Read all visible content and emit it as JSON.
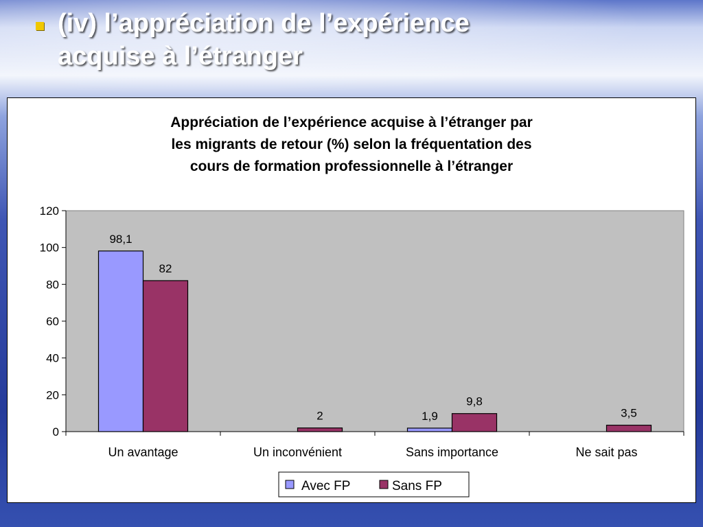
{
  "slide": {
    "title_line1": "(iv) l’appréciation de l’expérience",
    "title_line2": "acquise à l’étranger",
    "bullet_color": "#f0c800"
  },
  "chart_data": {
    "type": "bar",
    "title_lines": [
      "Appréciation de l’expérience acquise à l’étranger par",
      "les migrants de retour (%) selon la fréquentation des",
      "cours de formation professionnelle à l’étranger"
    ],
    "categories": [
      "Un avantage",
      "Un inconvénient",
      "Sans importance",
      "Ne sait pas"
    ],
    "series": [
      {
        "name": "Avec FP",
        "color": "#9999ff",
        "values": [
          98.1,
          0,
          1.9,
          0
        ],
        "labels": [
          "98,1",
          "",
          "1,9",
          ""
        ]
      },
      {
        "name": "Sans FP",
        "color": "#993366",
        "values": [
          82,
          2,
          9.8,
          3.5
        ],
        "labels": [
          "82",
          "2",
          "9,8",
          "3,5"
        ]
      }
    ],
    "y_ticks": [
      "0",
      "20",
      "40",
      "60",
      "80",
      "100",
      "120"
    ],
    "ylim": [
      0,
      120
    ],
    "plot_background": "#c0c0c0",
    "grid": false,
    "legend_position": "bottom"
  }
}
